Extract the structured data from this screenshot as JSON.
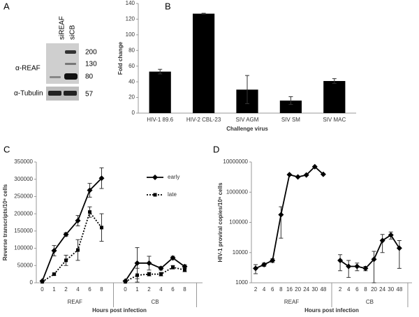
{
  "chart_data": [
    {
      "type": "blot",
      "panel": "A",
      "lanes": [
        "siREAF",
        "siCB"
      ],
      "rows": [
        "α-REAF",
        "α-Tubulin"
      ],
      "markers": [
        200,
        130,
        80,
        57
      ]
    },
    {
      "type": "bar",
      "panel": "B",
      "xlabel": "Challenge virus",
      "ylabel": "Fold change",
      "categories": [
        "HIV-1 89.6",
        "HIV-2 CBL-23",
        "SIV AGM",
        "SIV SM",
        "SIV MAC"
      ],
      "values": [
        53,
        127,
        30,
        16,
        41
      ],
      "errors": [
        3,
        0.5,
        18,
        5,
        3
      ],
      "color": "#000000",
      "ylim": [
        0,
        140
      ],
      "yticks": [
        0,
        20,
        40,
        60,
        80,
        100,
        120,
        140
      ]
    },
    {
      "type": "groupline",
      "panel": "C",
      "xlabel": "Hours post infection",
      "ylabel": "Reverse transcripts/10⁶ cells",
      "groups": [
        {
          "name": "REAF",
          "categories": [
            "0",
            "1",
            "2",
            "4",
            "6",
            "8"
          ]
        },
        {
          "name": "CB",
          "categories": [
            "0",
            "1",
            "2",
            "4",
            "6",
            "8"
          ]
        }
      ],
      "series": [
        {
          "name": "early",
          "color": "#000000",
          "dash": false,
          "marker": "diamond",
          "values": [
            [
              5000,
              93000,
              140000,
              180000,
              268000,
              303000
            ],
            [
              5000,
              57000,
              57000,
              42000,
              72000,
              47000
            ]
          ],
          "errors": [
            [
              0,
              15000,
              5000,
              15000,
              20000,
              30000
            ],
            [
              0,
              45000,
              20000,
              5000,
              5000,
              5000
            ]
          ]
        },
        {
          "name": "late",
          "color": "#000000",
          "dash": true,
          "marker": "square",
          "values": [
            [
              3000,
              25000,
              65000,
              95000,
              205000,
              160000
            ],
            [
              3000,
              22000,
              25000,
              25000,
              45000,
              37000
            ]
          ],
          "errors": [
            [
              0,
              3000,
              15000,
              30000,
              15000,
              40000
            ],
            [
              0,
              20000,
              5000,
              5000,
              5000,
              5000
            ]
          ]
        }
      ],
      "ylim": [
        0,
        350000
      ],
      "yticks": [
        0,
        50000,
        100000,
        150000,
        200000,
        250000,
        300000,
        350000
      ],
      "legend": "right",
      "log": false
    },
    {
      "type": "groupline",
      "panel": "D",
      "xlabel": "Hours post infection",
      "ylabel": "HIV-1 proviral copies/10⁶ cells",
      "groups": [
        {
          "name": "REAF",
          "categories": [
            "2",
            "4",
            "6",
            "8",
            "16",
            "20",
            "24",
            "30",
            "48"
          ]
        },
        {
          "name": "CB",
          "categories": [
            "2",
            "4",
            "6",
            "8",
            "20",
            "24",
            "30",
            "48"
          ]
        }
      ],
      "series": [
        {
          "color": "#000000",
          "dash": false,
          "marker": "diamond",
          "values": [
            [
              3000,
              4000,
              5500,
              180000,
              3800000,
              3200000,
              3700000,
              7000000,
              3900000
            ],
            [
              5500,
              3500,
              3500,
              3000,
              6000,
              25000,
              38000,
              14000
            ]
          ],
          "errors": [
            [
              1000,
              500,
              800,
              150000,
              0,
              0,
              0,
              0,
              0
            ],
            [
              3000,
              2000,
              1000,
              500,
              5000,
              15000,
              10000,
              11000
            ]
          ]
        }
      ],
      "ylim": [
        1000,
        10000000
      ],
      "yticks": [
        1000,
        10000,
        100000,
        1000000,
        10000000
      ],
      "log": true
    }
  ]
}
